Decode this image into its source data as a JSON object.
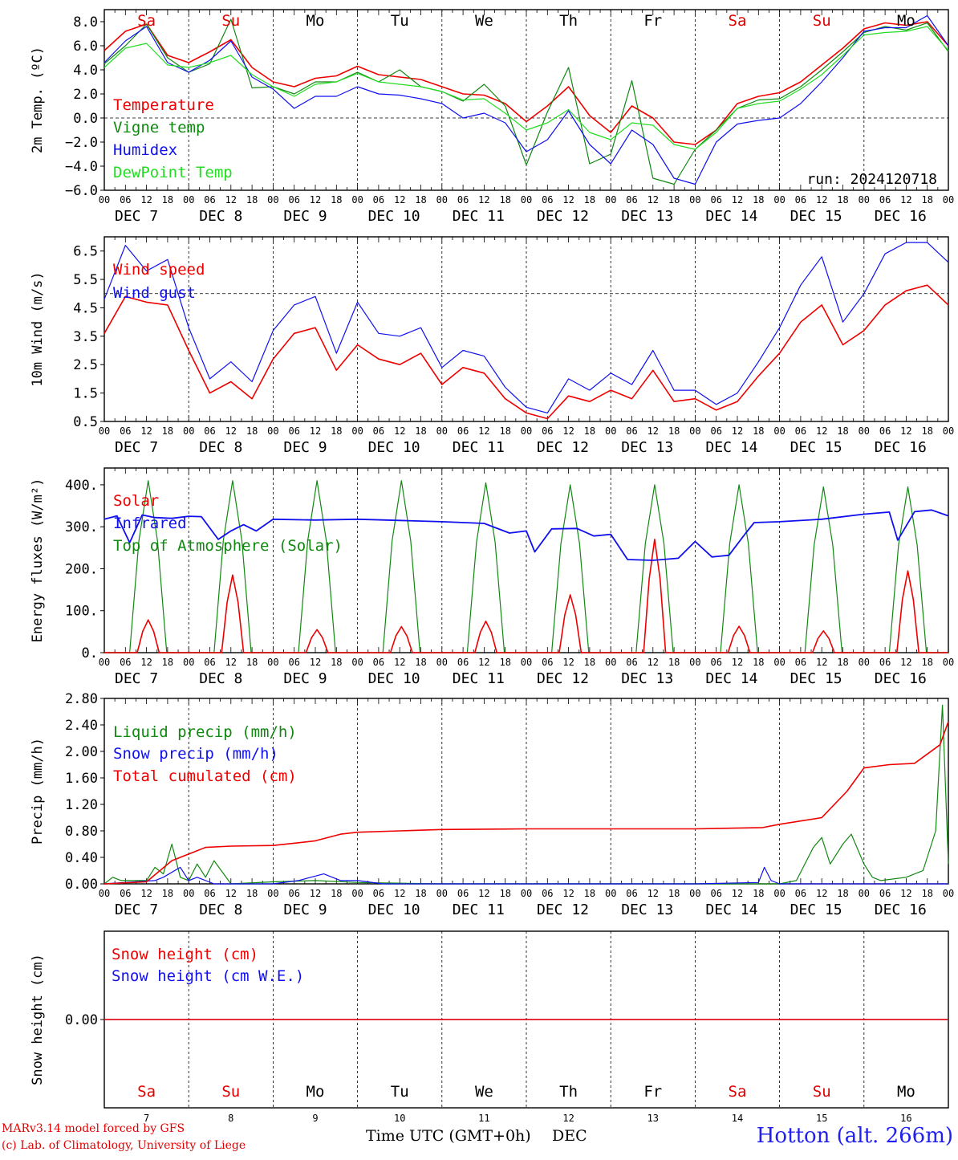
{
  "run_label": "run: 2024120718",
  "station": "Hotton (alt. 266m)",
  "credits": [
    "MARv3.14 model forced by GFS",
    "(c) Lab. of Climatology, University of Liege"
  ],
  "xaxis": {
    "title": "Time UTC (GMT+0h)",
    "unit": "DEC",
    "hour_ticks": [
      "00",
      "06",
      "12",
      "18"
    ],
    "dates": [
      "DEC  7",
      "DEC  8",
      "DEC  9",
      "DEC 10",
      "DEC 11",
      "DEC 12",
      "DEC 13",
      "DEC 14",
      "DEC 15",
      "DEC 16"
    ],
    "day_numbers": [
      "7",
      "8",
      "9",
      "10",
      "11",
      "12",
      "13",
      "14",
      "15",
      "16"
    ],
    "weekdays": [
      "Sa",
      "Su",
      "Mo",
      "Tu",
      "We",
      "Th",
      "Fr",
      "Sa",
      "Su",
      "Mo"
    ],
    "weekday_colors": [
      "#e00000",
      "#e00000",
      "#000000",
      "#000000",
      "#000000",
      "#000000",
      "#000000",
      "#e00000",
      "#e00000",
      "#000000"
    ]
  },
  "colors": {
    "red": "#ee0000",
    "green": "#118811",
    "blue": "#1010ee",
    "lightgreen": "#22dd22",
    "grid": "#000000"
  },
  "chart_data": [
    {
      "id": "temperature",
      "type": "line",
      "ylabel": "2m Temp. (ºC)",
      "ylim": [
        -6,
        9
      ],
      "yticks": [
        8,
        6,
        4,
        2,
        0,
        -2,
        -4,
        -6
      ],
      "ytick_labels": [
        "8.0",
        "6.0",
        "4.0",
        "2.0",
        "0.0",
        "−2.0",
        "−4.0",
        "−6.0"
      ],
      "dashed_ref": 0,
      "x_days": [
        0,
        0.25,
        0.5,
        0.75,
        1,
        1.25,
        1.5,
        1.75,
        2,
        2.25,
        2.5,
        2.75,
        3,
        3.25,
        3.5,
        3.75,
        4,
        4.25,
        4.5,
        4.75,
        5,
        5.25,
        5.5,
        5.75,
        6,
        6.25,
        6.5,
        6.75,
        7,
        7.25,
        7.5,
        7.75,
        8,
        8.25,
        8.5,
        8.75,
        9,
        9.25,
        9.5,
        9.75,
        10
      ],
      "series": [
        {
          "name": "Temperature",
          "color": "red",
          "values": [
            5.6,
            7.2,
            7.8,
            5.2,
            4.6,
            5.5,
            6.5,
            4.2,
            3.0,
            2.6,
            3.3,
            3.5,
            4.3,
            3.6,
            3.4,
            3.2,
            2.6,
            2.0,
            1.9,
            1.2,
            -0.3,
            1.0,
            2.6,
            0.2,
            -1.2,
            1.0,
            0.0,
            -2.0,
            -2.2,
            -1.0,
            1.2,
            1.8,
            2.1,
            3.0,
            4.4,
            5.8,
            7.4,
            7.9,
            7.7,
            8.0,
            6.0
          ]
        },
        {
          "name": "Vigne temp",
          "color": "green",
          "values": [
            4.5,
            6.0,
            7.8,
            5.0,
            3.8,
            4.5,
            8.2,
            2.5,
            2.6,
            2.0,
            3.0,
            3.0,
            3.8,
            3.0,
            4.0,
            2.6,
            2.2,
            1.4,
            2.8,
            1.0,
            -3.9,
            0.5,
            4.2,
            -3.8,
            -3.0,
            3.1,
            -5.0,
            -5.5,
            -2.6,
            -1.0,
            0.8,
            1.5,
            1.6,
            2.6,
            4.0,
            5.5,
            7.1,
            7.6,
            7.3,
            7.9,
            5.5
          ]
        },
        {
          "name": "Humidex",
          "color": "blue",
          "values": [
            4.6,
            6.4,
            7.6,
            4.6,
            3.8,
            4.8,
            6.4,
            3.4,
            2.4,
            0.8,
            1.8,
            1.8,
            2.6,
            2.0,
            1.9,
            1.6,
            1.2,
            0.0,
            0.4,
            -0.4,
            -2.8,
            -1.8,
            0.6,
            -2.2,
            -3.8,
            -1.0,
            -2.2,
            -5.0,
            -5.5,
            -2.0,
            -0.5,
            -0.2,
            0.0,
            1.2,
            3.0,
            5.0,
            7.2,
            7.5,
            7.5,
            8.5,
            6.0
          ]
        },
        {
          "name": "DewPoint Temp",
          "color": "lightgreen",
          "values": [
            4.2,
            5.8,
            6.2,
            4.4,
            4.2,
            4.6,
            5.2,
            3.6,
            2.6,
            1.8,
            2.8,
            3.0,
            3.7,
            3.0,
            2.8,
            2.6,
            2.2,
            1.5,
            1.6,
            0.4,
            -1.0,
            -0.4,
            0.7,
            -1.2,
            -1.8,
            -0.4,
            -0.6,
            -2.2,
            -2.6,
            -1.2,
            0.8,
            1.2,
            1.4,
            2.4,
            3.6,
            5.2,
            6.9,
            7.1,
            7.2,
            7.6,
            5.6
          ]
        }
      ]
    },
    {
      "id": "wind",
      "type": "line",
      "ylabel": "10m Wind (m/s)",
      "ylim": [
        0.5,
        7.0
      ],
      "yticks": [
        6.5,
        5.5,
        4.5,
        3.5,
        2.5,
        1.5,
        0.5
      ],
      "ytick_labels": [
        "6.5",
        "5.5",
        "4.5",
        "3.5",
        "2.5",
        "1.5",
        "0.5"
      ],
      "dashed_ref": 5.0,
      "x_days": [
        0,
        0.25,
        0.5,
        0.75,
        1,
        1.25,
        1.5,
        1.75,
        2,
        2.25,
        2.5,
        2.75,
        3,
        3.25,
        3.5,
        3.75,
        4,
        4.25,
        4.5,
        4.75,
        5,
        5.25,
        5.5,
        5.75,
        6,
        6.25,
        6.5,
        6.75,
        7,
        7.25,
        7.5,
        7.75,
        8,
        8.25,
        8.5,
        8.75,
        9,
        9.25,
        9.5,
        9.75,
        10
      ],
      "series": [
        {
          "name": "Wind speed",
          "color": "red",
          "values": [
            3.6,
            4.9,
            4.7,
            4.6,
            3.0,
            1.5,
            1.9,
            1.3,
            2.7,
            3.6,
            3.8,
            2.3,
            3.2,
            2.7,
            2.5,
            2.9,
            1.8,
            2.4,
            2.2,
            1.3,
            0.8,
            0.6,
            1.4,
            1.2,
            1.6,
            1.3,
            2.3,
            1.2,
            1.3,
            0.9,
            1.2,
            2.1,
            2.9,
            4.0,
            4.6,
            3.2,
            3.7,
            4.6,
            5.1,
            5.3,
            4.6
          ]
        },
        {
          "name": "Wind gust",
          "color": "blue",
          "values": [
            4.8,
            6.7,
            5.8,
            6.2,
            3.8,
            2.0,
            2.6,
            1.9,
            3.7,
            4.6,
            4.9,
            2.9,
            4.7,
            3.6,
            3.5,
            3.8,
            2.4,
            3.0,
            2.8,
            1.7,
            1.0,
            0.8,
            2.0,
            1.6,
            2.2,
            1.8,
            3.0,
            1.6,
            1.6,
            1.1,
            1.5,
            2.6,
            3.8,
            5.3,
            6.3,
            4.0,
            5.0,
            6.4,
            6.8,
            6.8,
            6.1
          ]
        }
      ]
    },
    {
      "id": "energy",
      "type": "line",
      "ylabel": "Energy fluxes (W/m²)",
      "ylim": [
        0,
        440
      ],
      "yticks": [
        400,
        300,
        200,
        100,
        0
      ],
      "ytick_labels": [
        "400.",
        "300.",
        "200.",
        "100.",
        "0."
      ],
      "day_peaks_x": [
        0.52,
        1.52,
        2.52,
        3.52,
        4.52,
        5.52,
        6.52,
        7.52,
        8.52,
        9.52
      ],
      "series": [
        {
          "name": "Solar",
          "color": "red",
          "peaks": [
            78,
            185,
            55,
            62,
            75,
            138,
            270,
            63,
            52,
            195
          ]
        },
        {
          "name": "Infrared",
          "color": "blue",
          "x_days": [
            0,
            0.15,
            0.3,
            0.45,
            0.6,
            0.8,
            1,
            1.15,
            1.35,
            1.5,
            1.65,
            1.8,
            2,
            2.5,
            3,
            3.5,
            4,
            4.5,
            4.8,
            5,
            5.1,
            5.3,
            5.6,
            5.8,
            6,
            6.2,
            6.5,
            6.8,
            7,
            7.2,
            7.4,
            7.6,
            7.7,
            8,
            8.5,
            9,
            9.3,
            9.4,
            9.6,
            9.8,
            10
          ],
          "values": [
            318,
            326,
            262,
            328,
            322,
            320,
            325,
            324,
            270,
            290,
            305,
            290,
            318,
            316,
            318,
            315,
            312,
            308,
            285,
            290,
            240,
            295,
            296,
            278,
            282,
            222,
            220,
            225,
            265,
            228,
            232,
            285,
            310,
            312,
            318,
            330,
            335,
            268,
            336,
            340,
            326
          ]
        },
        {
          "name": "Top of Atmosphere (Solar)",
          "color": "green",
          "peaks": [
            410,
            410,
            410,
            410,
            405,
            400,
            400,
            400,
            395,
            395
          ]
        }
      ]
    },
    {
      "id": "precip",
      "type": "line",
      "ylabel": "Precip (mm/h)",
      "ylim": [
        0,
        2.8
      ],
      "yticks": [
        2.8,
        2.4,
        2.0,
        1.6,
        1.2,
        0.8,
        0.4,
        0.0
      ],
      "ytick_labels": [
        "2.80",
        "2.40",
        "2.00",
        "1.60",
        "1.20",
        "0.80",
        "0.40",
        "0.00"
      ],
      "series": [
        {
          "name": "Liquid precip (mm/h)",
          "color": "green",
          "x_days": [
            0,
            0.1,
            0.2,
            0.5,
            0.6,
            0.7,
            0.8,
            0.9,
            1.0,
            1.1,
            1.2,
            1.3,
            1.5,
            2.0,
            2.5,
            3.0,
            4.0,
            5.0,
            6.0,
            7.0,
            8.0,
            8.2,
            8.4,
            8.5,
            8.6,
            8.75,
            8.85,
            9.0,
            9.1,
            9.2,
            9.5,
            9.7,
            9.85,
            9.93,
            10
          ],
          "values": [
            0,
            0.1,
            0.05,
            0.05,
            0.25,
            0.15,
            0.6,
            0.1,
            0.05,
            0.3,
            0.1,
            0.35,
            0,
            0.03,
            0.05,
            0.02,
            0,
            0,
            0,
            0,
            0,
            0.05,
            0.55,
            0.7,
            0.3,
            0.6,
            0.75,
            0.3,
            0.1,
            0.05,
            0.1,
            0.2,
            0.8,
            2.7,
            0.3
          ]
        },
        {
          "name": "Snow precip (mm/h)",
          "color": "blue",
          "x_days": [
            0,
            0.6,
            0.7,
            0.9,
            1.0,
            1.1,
            1.3,
            2.0,
            2.3,
            2.6,
            2.8,
            3.0,
            3.3,
            5.0,
            7.0,
            7.75,
            7.82,
            7.9,
            8.0,
            10
          ],
          "values": [
            0,
            0.05,
            0.1,
            0.25,
            0.05,
            0.1,
            0,
            0,
            0.05,
            0.15,
            0.05,
            0.05,
            0,
            0,
            0,
            0.02,
            0.25,
            0.05,
            0,
            0
          ]
        },
        {
          "name": "Total cumulated (cm)",
          "color": "red",
          "x_days": [
            0,
            0.5,
            0.8,
            1.0,
            1.2,
            1.5,
            2.0,
            2.3,
            2.5,
            2.8,
            3.0,
            3.5,
            4.0,
            5.0,
            6.0,
            7.0,
            7.8,
            8.0,
            8.5,
            8.8,
            9.0,
            9.3,
            9.6,
            9.9,
            10
          ],
          "values": [
            0,
            0.03,
            0.35,
            0.45,
            0.55,
            0.57,
            0.58,
            0.62,
            0.65,
            0.75,
            0.78,
            0.8,
            0.82,
            0.83,
            0.83,
            0.83,
            0.85,
            0.9,
            1.0,
            1.4,
            1.75,
            1.8,
            1.82,
            2.1,
            2.45
          ]
        }
      ]
    },
    {
      "id": "snow",
      "type": "line",
      "ylabel": "Snow height (cm)",
      "yticks": [
        0.0
      ],
      "ytick_labels": [
        "0.00"
      ],
      "series": [
        {
          "name": "Snow height (cm)",
          "color": "red",
          "values": [
            0,
            0
          ]
        },
        {
          "name": "Snow height (cm W.E.)",
          "color": "blue",
          "values": [
            0,
            0
          ]
        }
      ]
    }
  ]
}
